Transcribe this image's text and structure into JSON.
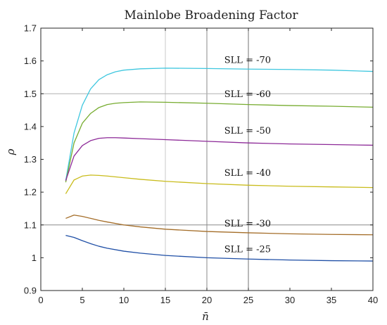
{
  "chart_data": {
    "type": "line",
    "title": "Mainlobe Broadening Factor",
    "xlabel": "n̄",
    "ylabel": "ρ",
    "xlim": [
      0,
      40
    ],
    "ylim": [
      0.9,
      1.7
    ],
    "xticks": [
      0,
      5,
      10,
      15,
      20,
      25,
      30,
      35,
      40
    ],
    "yticks": [
      0.9,
      1,
      1.1,
      1.2,
      1.3,
      1.4,
      1.5,
      1.6,
      1.7
    ],
    "xtick_labels": [
      "0",
      "5",
      "10",
      "15",
      "20",
      "25",
      "30",
      "35",
      "40"
    ],
    "ytick_labels": [
      "0.9",
      "1",
      "1.1",
      "1.2",
      "1.3",
      "1.4",
      "1.5",
      "1.6",
      "1.7"
    ],
    "grid": false,
    "vlines": [
      {
        "x": 15,
        "color": "#c8c8c8"
      },
      {
        "x": 20,
        "color": "#8a8a8a"
      },
      {
        "x": 25,
        "color": "#707070"
      }
    ],
    "hlines": [
      {
        "y": 1.5,
        "color": "#b0b0b0"
      },
      {
        "y": 1.1,
        "color": "#8a8a8a"
      }
    ],
    "series": [
      {
        "color": "#3fc7df",
        "x": [
          3,
          4,
          5,
          6,
          7,
          8,
          9,
          10,
          12,
          15,
          20,
          25,
          30,
          35,
          40
        ],
        "y": [
          1.235,
          1.38,
          1.465,
          1.515,
          1.543,
          1.558,
          1.567,
          1.572,
          1.576,
          1.578,
          1.577,
          1.575,
          1.574,
          1.572,
          1.568
        ]
      },
      {
        "color": "#77ac30",
        "x": [
          3,
          4,
          5,
          6,
          7,
          8,
          9,
          10,
          12,
          15,
          20,
          25,
          30,
          35,
          40
        ],
        "y": [
          1.23,
          1.35,
          1.41,
          1.44,
          1.458,
          1.467,
          1.471,
          1.473,
          1.475,
          1.474,
          1.471,
          1.467,
          1.464,
          1.462,
          1.459
        ]
      },
      {
        "color": "#8d2a98",
        "x": [
          3,
          4,
          5,
          6,
          7,
          8,
          9,
          10,
          12,
          15,
          20,
          25,
          30,
          35,
          40
        ],
        "y": [
          1.235,
          1.31,
          1.342,
          1.357,
          1.364,
          1.366,
          1.366,
          1.365,
          1.363,
          1.36,
          1.355,
          1.35,
          1.347,
          1.345,
          1.343
        ]
      },
      {
        "color": "#c9bc1c",
        "x": [
          3,
          4,
          5,
          6,
          7,
          8,
          10,
          12,
          15,
          20,
          25,
          30,
          35,
          40
        ],
        "y": [
          1.195,
          1.237,
          1.249,
          1.252,
          1.251,
          1.249,
          1.244,
          1.239,
          1.233,
          1.226,
          1.221,
          1.218,
          1.216,
          1.214
        ]
      },
      {
        "color": "#a46d28",
        "x": [
          3,
          4,
          5,
          6,
          7,
          8,
          10,
          12,
          15,
          20,
          25,
          30,
          35,
          40
        ],
        "y": [
          1.12,
          1.13,
          1.126,
          1.12,
          1.114,
          1.109,
          1.1,
          1.094,
          1.087,
          1.08,
          1.076,
          1.073,
          1.071,
          1.07
        ]
      },
      {
        "color": "#1f4fa6",
        "x": [
          3,
          4,
          5,
          6,
          7,
          8,
          10,
          12,
          15,
          20,
          25,
          30,
          35,
          40
        ],
        "y": [
          1.068,
          1.062,
          1.052,
          1.043,
          1.035,
          1.029,
          1.02,
          1.014,
          1.007,
          1.0,
          0.996,
          0.993,
          0.991,
          0.99
        ]
      }
    ],
    "annotations": [
      {
        "text": "SLL = -70",
        "x": 22.1,
        "y": 1.594
      },
      {
        "text": "SLL = -60",
        "x": 22.1,
        "y": 1.49
      },
      {
        "text": "SLL = -50",
        "x": 22.1,
        "y": 1.378
      },
      {
        "text": "SLL = -40",
        "x": 22.1,
        "y": 1.25
      },
      {
        "text": "SLL = -30",
        "x": 22.1,
        "y": 1.095
      },
      {
        "text": "SLL = -25",
        "x": 22.1,
        "y": 1.017
      }
    ]
  }
}
